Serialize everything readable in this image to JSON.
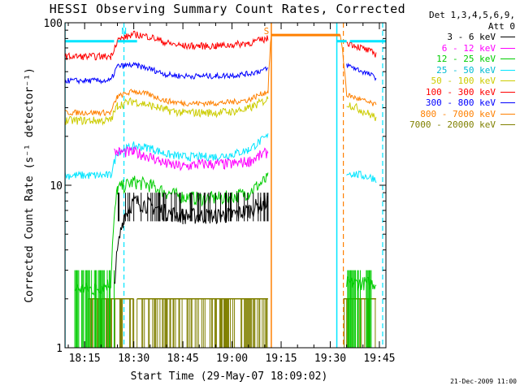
{
  "chart_data": {
    "type": "line",
    "title": "HESSI Observing Summary Count Rates, Corrected",
    "xlabel": "Start Time (29-May-07 18:09:02)",
    "ylabel": "Corrected Count Rate (s⁻¹ detector⁻¹)",
    "y_scale": "log",
    "ylim": [
      1,
      100
    ],
    "xlim": [
      "18:09",
      "19:47"
    ],
    "x_ticks": [
      "18:15",
      "18:30",
      "18:45",
      "19:00",
      "19:15",
      "19:30",
      "19:45"
    ],
    "y_tick_labels": [
      "1",
      "10",
      "100"
    ],
    "grid": false,
    "legend_position": "right-outside",
    "legend_header": [
      "Det 1,3,4,5,6,9,",
      "Att 0"
    ],
    "flag_labels": [
      "N",
      "S"
    ],
    "series": [
      {
        "name": "3 - 6 keV",
        "color": "#000000",
        "points": [
          [
            "18:24",
            2.5
          ],
          [
            "18:27",
            6.5
          ],
          [
            "18:30",
            8.0
          ],
          [
            "18:35",
            7.5
          ],
          [
            "18:40",
            6.8
          ],
          [
            "18:45",
            6.5
          ],
          [
            "18:50",
            6.5
          ],
          [
            "18:55",
            6.5
          ],
          [
            "19:00",
            6.6
          ],
          [
            "19:05",
            7.0
          ],
          [
            "19:11",
            8.0
          ]
        ]
      },
      {
        "name": "6 - 12 keV",
        "color": "#ff00ff",
        "points": [
          [
            "18:24",
            16
          ],
          [
            "18:30",
            16
          ],
          [
            "18:35",
            15
          ],
          [
            "18:40",
            13.5
          ],
          [
            "18:45",
            13
          ],
          [
            "18:50",
            13.5
          ],
          [
            "18:55",
            13.5
          ],
          [
            "19:00",
            13.5
          ],
          [
            "19:05",
            14
          ],
          [
            "19:11",
            16
          ]
        ]
      },
      {
        "name": "12 - 25 keV",
        "color": "#00cc00",
        "points": [
          [
            "18:12",
            2.3
          ],
          [
            "18:18",
            2.3
          ],
          [
            "18:23",
            2.5
          ],
          [
            "18:25",
            9.5
          ],
          [
            "18:30",
            10.5
          ],
          [
            "18:35",
            10
          ],
          [
            "18:40",
            9
          ],
          [
            "18:45",
            8.5
          ],
          [
            "18:50",
            8.3
          ],
          [
            "18:55",
            8.3
          ],
          [
            "19:00",
            8.5
          ],
          [
            "19:05",
            9
          ],
          [
            "19:11",
            11
          ],
          [
            "19:35",
            2.5
          ],
          [
            "19:44",
            2.5
          ]
        ]
      },
      {
        "name": "25 - 50 keV",
        "color": "#00e5ff",
        "points": [
          [
            "18:09",
            11.5
          ],
          [
            "18:23",
            11.5
          ],
          [
            "18:25",
            16
          ],
          [
            "18:30",
            17.5
          ],
          [
            "18:35",
            17
          ],
          [
            "18:40",
            15.5
          ],
          [
            "18:45",
            15
          ],
          [
            "18:50",
            15
          ],
          [
            "18:55",
            15
          ],
          [
            "19:00",
            15.5
          ],
          [
            "19:05",
            16.5
          ],
          [
            "19:11",
            20
          ],
          [
            "19:35",
            12
          ],
          [
            "19:44",
            11
          ]
        ]
      },
      {
        "name": "50 - 100 keV",
        "color": "#cccc00",
        "points": [
          [
            "18:09",
            25
          ],
          [
            "18:23",
            25
          ],
          [
            "18:25",
            31
          ],
          [
            "18:30",
            33
          ],
          [
            "18:35",
            31
          ],
          [
            "18:40",
            29
          ],
          [
            "18:45",
            28
          ],
          [
            "18:50",
            28
          ],
          [
            "18:55",
            28
          ],
          [
            "19:00",
            28.5
          ],
          [
            "19:05",
            29.5
          ],
          [
            "19:11",
            34
          ],
          [
            "19:35",
            32
          ],
          [
            "19:44",
            26
          ]
        ]
      },
      {
        "name": "100 - 300 keV",
        "color": "#ff0000",
        "points": [
          [
            "18:09",
            62
          ],
          [
            "18:23",
            62
          ],
          [
            "18:25",
            78
          ],
          [
            "18:30",
            85
          ],
          [
            "18:35",
            82
          ],
          [
            "18:40",
            75
          ],
          [
            "18:45",
            72
          ],
          [
            "18:50",
            72
          ],
          [
            "18:55",
            72
          ],
          [
            "19:00",
            73
          ],
          [
            "19:05",
            75
          ],
          [
            "19:11",
            80
          ],
          [
            "19:35",
            76
          ],
          [
            "19:44",
            64
          ]
        ]
      },
      {
        "name": "300 - 800 keV",
        "color": "#0000ff",
        "points": [
          [
            "18:09",
            44
          ],
          [
            "18:23",
            44
          ],
          [
            "18:25",
            54
          ],
          [
            "18:30",
            55
          ],
          [
            "18:35",
            52
          ],
          [
            "18:40",
            48
          ],
          [
            "18:45",
            47
          ],
          [
            "18:50",
            47
          ],
          [
            "18:55",
            47
          ],
          [
            "19:00",
            47.5
          ],
          [
            "19:05",
            48.5
          ],
          [
            "19:11",
            52
          ],
          [
            "19:35",
            55
          ],
          [
            "19:44",
            46
          ]
        ]
      },
      {
        "name": "800 - 7000 keV",
        "color": "#ff8000",
        "points": [
          [
            "18:09",
            28
          ],
          [
            "18:23",
            28
          ],
          [
            "18:25",
            35
          ],
          [
            "18:30",
            38
          ],
          [
            "18:35",
            36
          ],
          [
            "18:40",
            33
          ],
          [
            "18:45",
            32
          ],
          [
            "18:50",
            32
          ],
          [
            "18:55",
            32
          ],
          [
            "19:00",
            32.5
          ],
          [
            "19:05",
            33.5
          ],
          [
            "19:11",
            38
          ],
          [
            "19:12",
            84
          ],
          [
            "19:33",
            84
          ],
          [
            "19:35",
            36
          ],
          [
            "19:44",
            31
          ]
        ]
      },
      {
        "name": "7000 - 20000 keV",
        "color": "#808000",
        "points": [
          [
            "18:09",
            1.5
          ],
          [
            "18:25",
            1.5
          ],
          [
            "18:30",
            1.5
          ],
          [
            "18:45",
            1.5
          ],
          [
            "19:00",
            1.5
          ],
          [
            "19:11",
            1.5
          ],
          [
            "19:35",
            1.5
          ],
          [
            "19:44",
            1.5
          ]
        ]
      }
    ]
  },
  "footer": {
    "datestamp": "21-Dec-2009 11:00"
  }
}
